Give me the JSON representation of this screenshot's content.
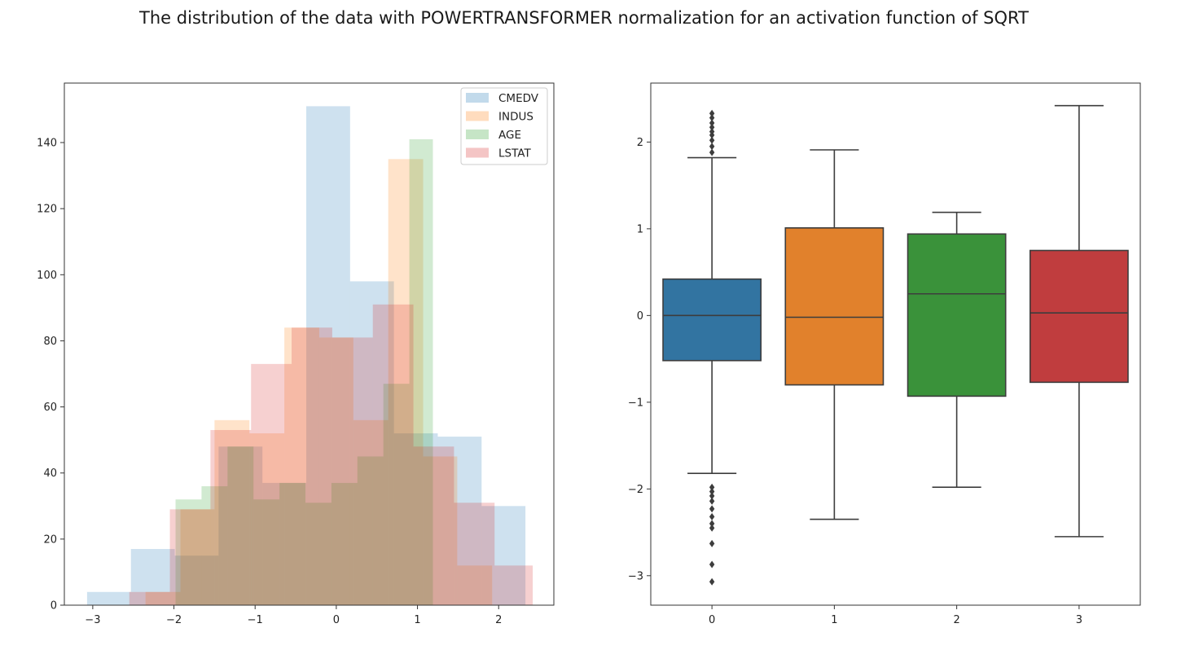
{
  "figure": {
    "title": "The distribution of the data with POWERTRANSFORMER normalization for an activation function of SQRT"
  },
  "chart_data": [
    {
      "type": "histogram",
      "title": "",
      "xlabel": "",
      "ylabel": "",
      "xlim": [
        -3.35,
        2.68
      ],
      "ylim": [
        0,
        158
      ],
      "xticks": [
        -3,
        -2,
        -1,
        0,
        1,
        2
      ],
      "xtick_labels": [
        "−3",
        "−2",
        "−1",
        "0",
        "1",
        "2"
      ],
      "yticks": [
        0,
        20,
        40,
        60,
        80,
        100,
        120,
        140
      ],
      "ytick_labels": [
        "0",
        "20",
        "40",
        "60",
        "80",
        "100",
        "120",
        "140"
      ],
      "legend_position": "top-right",
      "alpha": 0.22,
      "series": [
        {
          "name": "CMEDV",
          "color": "#1f77b4",
          "edges": [
            -3.07,
            -2.53,
            -1.99,
            -1.45,
            -0.91,
            -0.37,
            0.17,
            0.71,
            1.25,
            1.79,
            2.33
          ],
          "counts": [
            4,
            17,
            15,
            48,
            37,
            151,
            98,
            52,
            51,
            30
          ]
        },
        {
          "name": "INDUS",
          "color": "#ff7f0e",
          "edges": [
            -2.35,
            -1.92,
            -1.5,
            -1.07,
            -0.64,
            -0.21,
            0.21,
            0.64,
            1.07,
            1.49,
            1.92
          ],
          "counts": [
            4,
            29,
            56,
            52,
            84,
            81,
            56,
            135,
            45,
            12
          ]
        },
        {
          "name": "AGE",
          "color": "#2ca02c",
          "edges": [
            -1.98,
            -1.66,
            -1.34,
            -1.02,
            -0.7,
            -0.38,
            -0.06,
            0.26,
            0.58,
            0.9,
            1.19
          ],
          "counts": [
            32,
            36,
            48,
            32,
            37,
            31,
            37,
            45,
            67,
            141
          ]
        },
        {
          "name": "LSTAT",
          "color": "#d62728",
          "edges": [
            -2.55,
            -2.05,
            -1.55,
            -1.05,
            -0.55,
            -0.05,
            0.45,
            0.95,
            1.45,
            1.95,
            2.42
          ],
          "counts": [
            4,
            29,
            53,
            73,
            84,
            81,
            91,
            48,
            31,
            12
          ]
        }
      ]
    },
    {
      "type": "boxplot",
      "title": "",
      "xlabel": "",
      "ylabel": "",
      "ylim": [
        -3.34,
        2.68
      ],
      "yticks": [
        -3,
        -2,
        -1,
        0,
        1,
        2
      ],
      "ytick_labels": [
        "−3",
        "−2",
        "−1",
        "0",
        "1",
        "2"
      ],
      "categories": [
        "0",
        "1",
        "2",
        "3"
      ],
      "boxes": [
        {
          "category": "0",
          "color": "#3274a1",
          "q1": -0.52,
          "median": 0.0,
          "q3": 0.42,
          "whisker_low": -1.82,
          "whisker_high": 1.82,
          "outliers": [
            1.88,
            1.95,
            2.02,
            2.08,
            2.12,
            2.17,
            2.22,
            2.28,
            2.33,
            -1.98,
            -2.03,
            -2.08,
            -2.14,
            -2.23,
            -2.32,
            -2.4,
            -2.45,
            -2.63,
            -2.87,
            -3.07
          ]
        },
        {
          "category": "1",
          "color": "#e1812c",
          "q1": -0.8,
          "median": -0.02,
          "q3": 1.01,
          "whisker_low": -2.35,
          "whisker_high": 1.91,
          "outliers": []
        },
        {
          "category": "2",
          "color": "#3a923a",
          "q1": -0.93,
          "median": 0.25,
          "q3": 0.94,
          "whisker_low": -1.98,
          "whisker_high": 1.19,
          "outliers": []
        },
        {
          "category": "3",
          "color": "#c03d3e",
          "q1": -0.77,
          "median": 0.03,
          "q3": 0.75,
          "whisker_low": -2.55,
          "whisker_high": 2.42,
          "outliers": []
        }
      ]
    }
  ]
}
